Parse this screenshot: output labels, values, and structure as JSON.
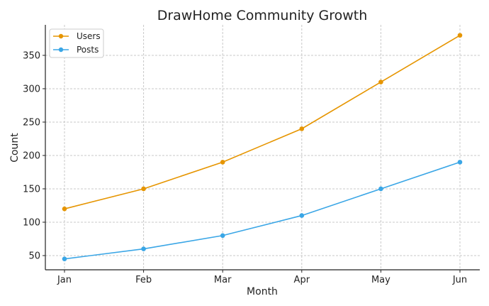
{
  "chart_data": {
    "type": "line",
    "title": "DrawHome Community Growth",
    "xlabel": "Month",
    "ylabel": "Count",
    "categories": [
      "Jan",
      "Feb",
      "Mar",
      "Apr",
      "May",
      "Jun"
    ],
    "series": [
      {
        "name": "Users",
        "values": [
          120,
          150,
          190,
          240,
          310,
          380
        ],
        "color": "#e69500"
      },
      {
        "name": "Posts",
        "values": [
          45,
          60,
          80,
          110,
          150,
          190
        ],
        "color": "#3aa6e6"
      }
    ],
    "yticks": [
      50,
      100,
      150,
      200,
      250,
      300,
      350
    ],
    "ylim": [
      28.7,
      395.7
    ],
    "grid": true,
    "legend": "top-left"
  }
}
